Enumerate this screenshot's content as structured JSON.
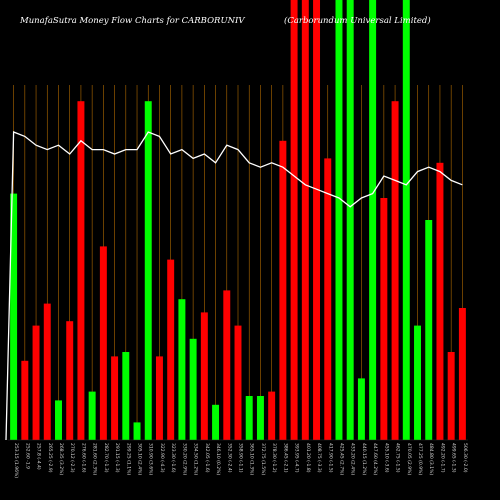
{
  "chart_data": {
    "type": "bar",
    "title": "MunafaSutra  Money Flow  Charts for CARBORUNIV",
    "subtitle": "(Carborundum Universal Limited)",
    "colors": {
      "up": "#00ff00",
      "down": "#ff0000",
      "line": "#ffffff",
      "grid": "#b06a00",
      "background": "#000000"
    },
    "values": [
      56,
      18,
      26,
      31,
      9,
      27,
      77,
      11,
      44,
      19,
      20,
      4,
      77,
      19,
      41,
      32,
      23,
      29,
      8,
      34,
      26,
      10,
      10,
      11,
      68,
      100,
      100,
      100,
      64,
      100,
      100,
      14,
      100,
      55,
      77,
      100,
      26,
      50,
      63,
      20,
      30
    ],
    "directions": [
      "up",
      "down",
      "down",
      "down",
      "up",
      "down",
      "down",
      "up",
      "down",
      "down",
      "up",
      "up",
      "up",
      "down",
      "down",
      "up",
      "up",
      "down",
      "up",
      "down",
      "down",
      "up",
      "up",
      "down",
      "down",
      "down",
      "down",
      "down",
      "down",
      "up",
      "up",
      "up",
      "up",
      "down",
      "down",
      "up",
      "up",
      "up",
      "down",
      "down",
      "down"
    ],
    "line_values": [
      70,
      69,
      67,
      66,
      67,
      65,
      68,
      66,
      66,
      65,
      66,
      66,
      70,
      69,
      65,
      66,
      64,
      65,
      63,
      67,
      66,
      63,
      62,
      63,
      62,
      60,
      58,
      57,
      56,
      55,
      53,
      55,
      56,
      60,
      59,
      58,
      61,
      62,
      61,
      59,
      58
    ],
    "categories": [
      "253.15 (1.96%)",
      "252.60 -1.9",
      "257.8 (-4.4)",
      "265.25 (-2.9)",
      "268.35 (3.2%)",
      "270.12 (-2.3)",
      "276.60 (-1.6)",
      "281.60 (2.3%)",
      "282.70 (-1.3)",
      "291.15 (-1.3)",
      "299.25 (1.1%)",
      "305.10 (2.4%)",
      "310.90 (3.6%)",
      "322.90 (-4.3)",
      "323.30 (-1.6)",
      "330.20 (2.9%)",
      "334.50 (1.2%)",
      "342.05 (-1.6)",
      "346.10 (0.2%)",
      "352.30 (-2.4)",
      "358.90 (-1.1)",
      "365.10 (1.3%)",
      "372.75 (1.5%)",
      "378.30 (-1.2)",
      "386.45 (-2.1)",
      "393.95 (-4.7)",
      "401.20 (-1.8)",
      "408.75 (-3.3)",
      "417.90 (-1.5)",
      "425.45 (2.7%)",
      "433.20 (2.4%)",
      "440.15 (1.2%)",
      "447.60 (4.2%)",
      "455.10 (-3.6)",
      "462.75 (-1.5)",
      "470.05 (2.9%)",
      "477.25 (0.9%)",
      "484.80 (3.1%)",
      "492.20 (-1.7)",
      "499.65 (-1.3)",
      "506.30 (-2.0)"
    ]
  }
}
